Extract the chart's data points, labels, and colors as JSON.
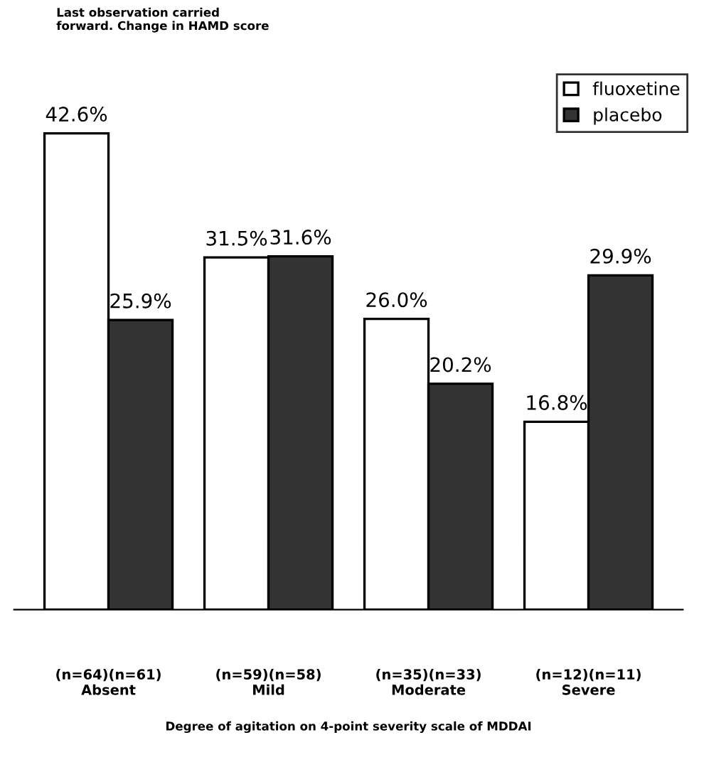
{
  "chart_data": {
    "type": "bar",
    "title": "Last observation carried\nforward. Change in HAMD score",
    "xlabel": "Degree of agitation on 4-point severity scale of MDDAI",
    "categories": [
      "(n=64)(n=61)\nAbsent",
      "(n=59)(n=58)\nMild",
      "(n=35)(n=33)\nModerate",
      "(n=12)(n=11)\nSevere"
    ],
    "series": [
      {
        "name": "fluoxetine",
        "color": "#ffffff",
        "values": [
          42.6,
          31.5,
          26.0,
          16.8
        ],
        "value_labels": [
          "42.6%",
          "31.5%",
          "26.0%",
          "16.8%"
        ]
      },
      {
        "name": "placebo",
        "color": "#333333",
        "values": [
          25.9,
          31.6,
          20.2,
          29.9
        ],
        "value_labels": [
          "25.9%",
          "31.6%",
          "20.2%",
          "29.9%"
        ]
      }
    ],
    "legend": "top right",
    "grid": false
  }
}
